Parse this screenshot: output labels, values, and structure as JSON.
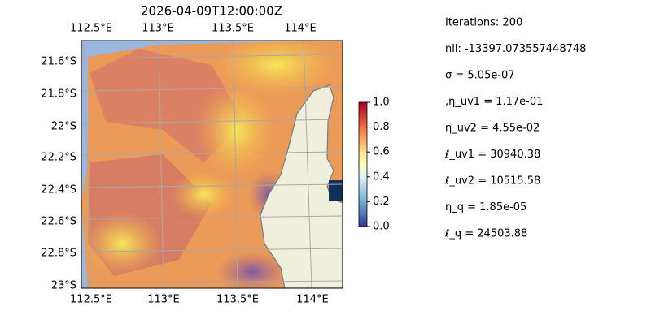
{
  "title": "2026-04-09T12:00:00Z",
  "lon_labels_top": [
    "112.5°E",
    "113°E",
    "113.5°E",
    "114°E"
  ],
  "lon_labels_bottom": [
    "112.5°E",
    "113°E",
    "113.5°E",
    "114°E"
  ],
  "lat_labels": [
    "21.6°S",
    "21.8°S",
    "22°S",
    "22.2°S",
    "22.4°S",
    "22.6°S",
    "22.8°S",
    "23°S"
  ],
  "colorbar": {
    "lim": [
      0,
      1
    ],
    "ticks": [
      {
        "value": 0,
        "label": "0.0"
      },
      {
        "value": 0.2,
        "label": "0.2"
      },
      {
        "value": 0.4,
        "label": "0.4"
      },
      {
        "value": 0.6,
        "label": "0.6"
      },
      {
        "value": 0.8,
        "label": "0.8"
      },
      {
        "value": 1,
        "label": "1.0"
      }
    ]
  },
  "params": [
    "Iterations: 200",
    "nll: -13397.073557448748",
    "σ = 5.05e-07",
    ",η_uv1 = 1.17e-01",
    "η_uv2 = 4.55e-02",
    "ℓ_uv1 = 30940.38",
    "ℓ_uv2 = 10515.58",
    "η_q = 1.85e-05",
    "ℓ_q = 24503.88"
  ]
}
